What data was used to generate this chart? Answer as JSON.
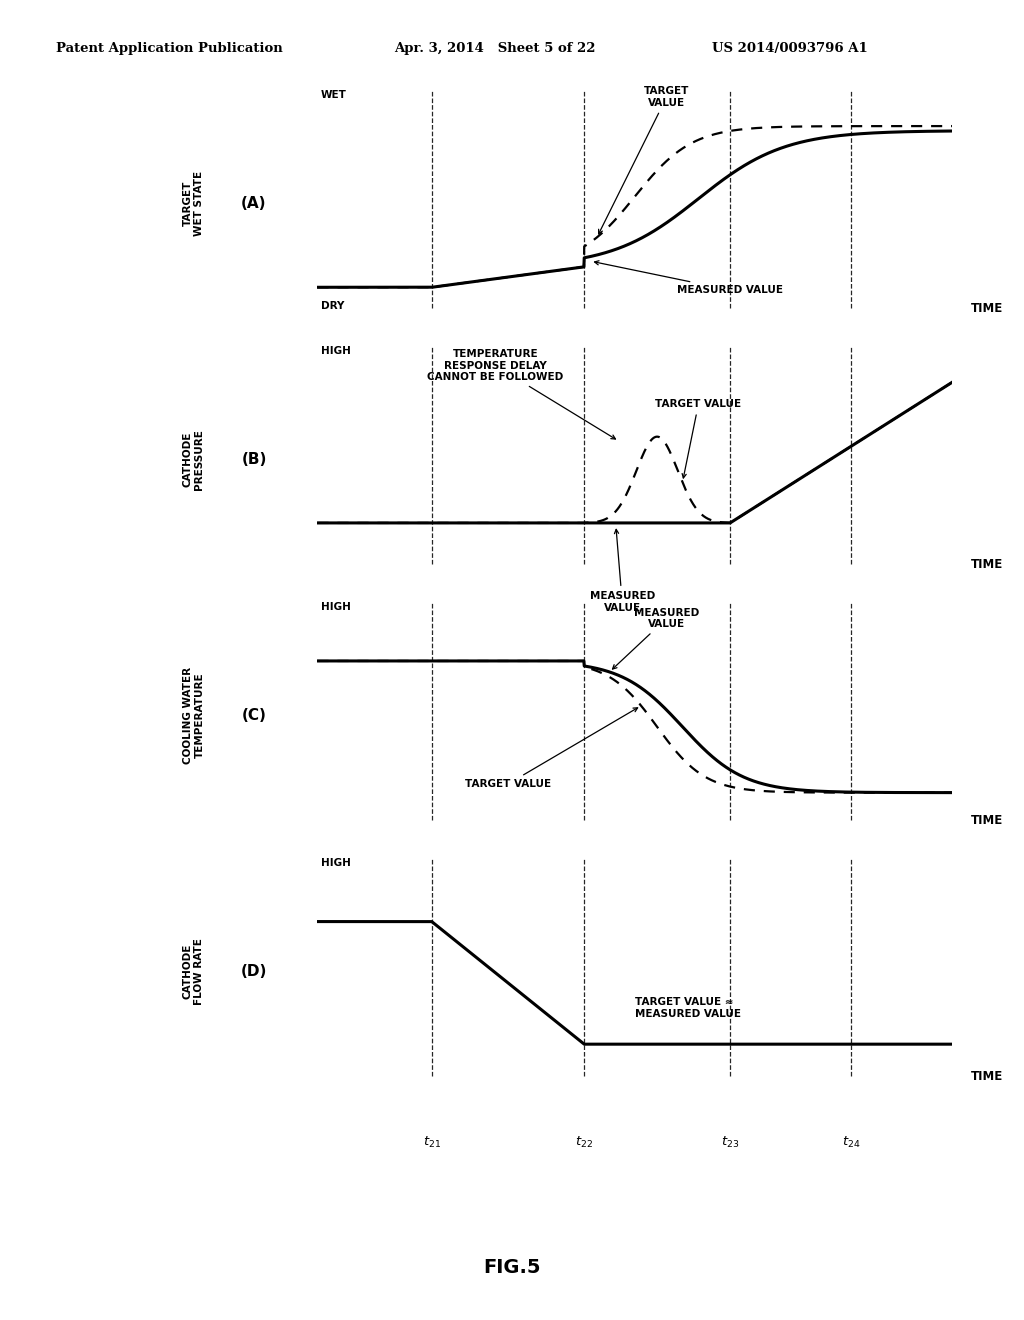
{
  "header_left": "Patent Application Publication",
  "header_mid": "Apr. 3, 2014   Sheet 5 of 22",
  "header_right": "US 2014/0093796 A1",
  "figure_title": "FIG.5",
  "background_color": "#ffffff",
  "vline_positions": [
    0.18,
    0.42,
    0.65,
    0.84
  ],
  "time_labels": [
    "t_{21}",
    "t_{22}",
    "t_{23}",
    "t_{24}"
  ],
  "panel_labels": [
    "(A)",
    "(B)",
    "(C)",
    "(D)"
  ],
  "panel_ylabels": [
    "TARGET\nWET STATE",
    "CATHODE\nPRESSURE",
    "COOLING WATER\nTEMPERATURE",
    "CATHODE\nFLOW RATE"
  ],
  "panel_ytop": [
    "WET",
    "HIGH",
    "HIGH",
    "HIGH"
  ],
  "panel_ybottom": [
    "DRY",
    "",
    "",
    ""
  ]
}
